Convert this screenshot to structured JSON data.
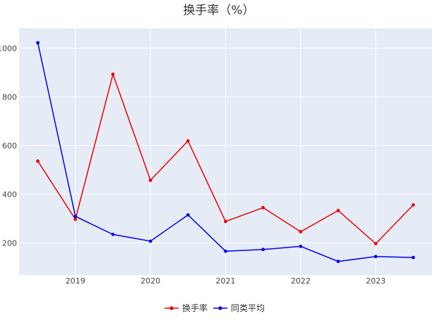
{
  "chart_data": {
    "type": "line",
    "title": "换手率（%）",
    "xlabel": "",
    "ylabel": "",
    "x": [
      "2018-07",
      "2019-01",
      "2019-07",
      "2020-01",
      "2020-07",
      "2021-01",
      "2021-07",
      "2022-01",
      "2022-07",
      "2023-01",
      "2023-07"
    ],
    "x_ticks": [
      "2019",
      "2020",
      "2021",
      "2022",
      "2023"
    ],
    "y_ticks": [
      200,
      400,
      600,
      800,
      1000
    ],
    "y_tick_labels": [
      "200",
      "400",
      "600",
      "800",
      "1000"
    ],
    "xlim": [
      "2018-04",
      "2023-10"
    ],
    "ylim": [
      68,
      1082
    ],
    "grid": true,
    "legend_position": "bottom",
    "series": [
      {
        "name": "换手率",
        "color": "#ee0000",
        "values": [
          536,
          297,
          893,
          457,
          619,
          288,
          345,
          246,
          333,
          197,
          356
        ]
      },
      {
        "name": "同类平均",
        "color": "#0000ee",
        "values": [
          1022,
          309,
          235,
          207,
          315,
          166,
          173,
          186,
          124,
          144,
          140
        ]
      }
    ]
  }
}
